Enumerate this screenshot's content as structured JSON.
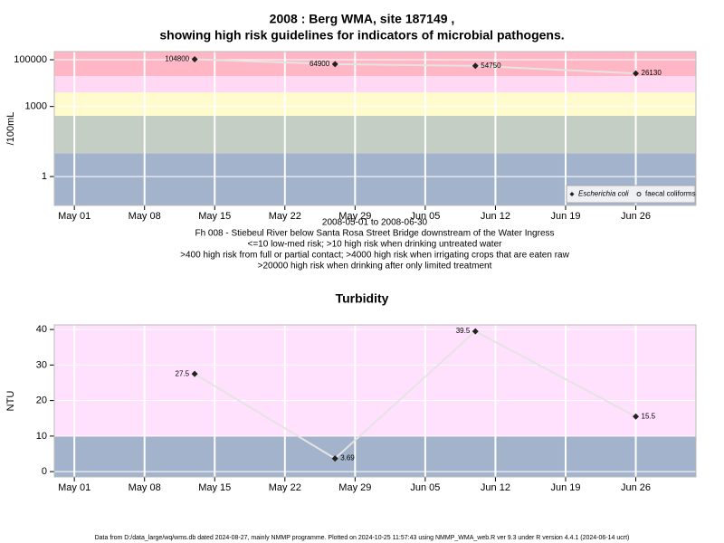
{
  "chart_data": [
    {
      "type": "line",
      "title": [
        "2008 : Berg WMA, site 187149 ,",
        "showing high risk guidelines for indicators of microbial pathogens."
      ],
      "ylabel": "/100mL",
      "xlabel": "2008-05-01 to 2008-06-30",
      "notes": [
        "Fh 008 - Stiebeul River below Santa Rosa Street Bridge downstream of the Water Ingress",
        "<=10 low-med risk; >10 high risk when drinking untreated water",
        ">400 high risk from full or partial contact; >4000 high risk when irrigating crops that are eaten raw",
        ">20000 high risk when drinking after only limited treatment"
      ],
      "x": [
        "2008-05-13",
        "2008-05-27",
        "2008-06-10",
        "2008-06-26"
      ],
      "series": [
        {
          "name": "Escherichia coli",
          "color": "#222222",
          "values": [
            104800,
            64900,
            54750,
            26130
          ]
        },
        {
          "name": "faecal coliforms",
          "color": "#222222",
          "values": [
            null,
            null,
            null,
            null
          ]
        }
      ],
      "log_y": true,
      "ylim": [
        0.058,
        224000
      ],
      "yticks": [
        1,
        1000,
        100000
      ],
      "xlim": [
        "2008-04-29",
        "2008-07-02"
      ],
      "xticks": [
        {
          "value": "2008-05-01",
          "label": "May 01"
        },
        {
          "value": "2008-05-08",
          "label": "May 08"
        },
        {
          "value": "2008-05-15",
          "label": "May 15"
        },
        {
          "value": "2008-05-22",
          "label": "May 22"
        },
        {
          "value": "2008-05-29",
          "label": "May 29"
        },
        {
          "value": "2008-06-05",
          "label": "Jun 05"
        },
        {
          "value": "2008-06-12",
          "label": "Jun 12"
        },
        {
          "value": "2008-06-19",
          "label": "Jun 19"
        },
        {
          "value": "2008-06-26",
          "label": "Jun 26"
        }
      ],
      "band_edges": [
        10,
        400,
        4000,
        20000
      ],
      "band_colors": [
        "#a3b3cb",
        "#c4cec4",
        "#fffbcc",
        "#ffd9f4",
        "#ffb7c5"
      ],
      "grid": true,
      "legend": "bottom right"
    },
    {
      "type": "line",
      "title": [
        "Turbidity"
      ],
      "ylabel": "NTU",
      "x": [
        "2008-05-13",
        "2008-05-27",
        "2008-06-10",
        "2008-06-26"
      ],
      "values": [
        27.5,
        3.69,
        39.5,
        15.5
      ],
      "color": "#222222",
      "ylim": [
        -1.5,
        41.3
      ],
      "yticks": [
        0,
        10,
        20,
        30,
        40
      ],
      "xlim": [
        "2008-04-29",
        "2008-07-02"
      ],
      "xticks": [
        {
          "value": "2008-05-01",
          "label": "May 01"
        },
        {
          "value": "2008-05-08",
          "label": "May 08"
        },
        {
          "value": "2008-05-15",
          "label": "May 15"
        },
        {
          "value": "2008-05-22",
          "label": "May 22"
        },
        {
          "value": "2008-05-29",
          "label": "May 29"
        },
        {
          "value": "2008-06-05",
          "label": "Jun 05"
        },
        {
          "value": "2008-06-12",
          "label": "Jun 12"
        },
        {
          "value": "2008-06-19",
          "label": "Jun 19"
        },
        {
          "value": "2008-06-26",
          "label": "Jun 26"
        }
      ],
      "band_edges": [
        10
      ],
      "band_colors": [
        "#a3b3cb",
        "#ffe0fd"
      ],
      "grid": true
    }
  ],
  "footer": "Data from D:/data_large/wq/wms.db dated 2024-08-27, mainly NMMP programme. Plotted on 2024-10-25 11:57:43 using NMMP_WMA_web.R ver 9.3 under R version 4.4.1 (2024-06-14 ucrt)"
}
